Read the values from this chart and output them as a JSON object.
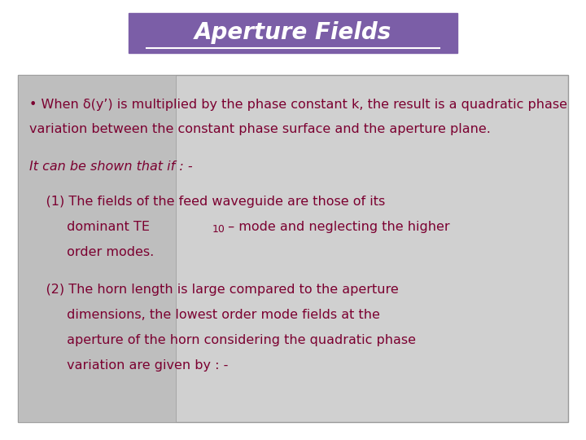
{
  "title": "Aperture Fields",
  "title_bg_color": "#7B5EA7",
  "title_text_color": "#FFFFFF",
  "title_fontsize": 20,
  "bg_color": "#FFFFFF",
  "content_bg_color": "#D0D0D0",
  "inner_box_color": "#BEBEBE",
  "text_color": "#7B0030",
  "bullet_text_line1": "• When δ(y’) is multiplied by the phase constant k, the result is a quadratic phase",
  "bullet_text_line2": "variation between the constant phase surface and the aperture plane.",
  "subtitle_text": "It can be shown that if : -",
  "item1_line1": "    (1) The fields of the feed waveguide are those of its",
  "item1_line2_a": "         dominant TE",
  "item1_sub": "10",
  "item1_line2_b": " – mode and neglecting the higher",
  "item1_line3": "         order modes.",
  "item2_line1": "    (2) The horn length is large compared to the aperture",
  "item2_line2": "         dimensions, the lowest order mode fields at the",
  "item2_line3": "         aperture of the horn considering the quadratic phase",
  "item2_line4": "         variation are given by : -",
  "content_font_size": 11.5,
  "border_color": "#999999"
}
